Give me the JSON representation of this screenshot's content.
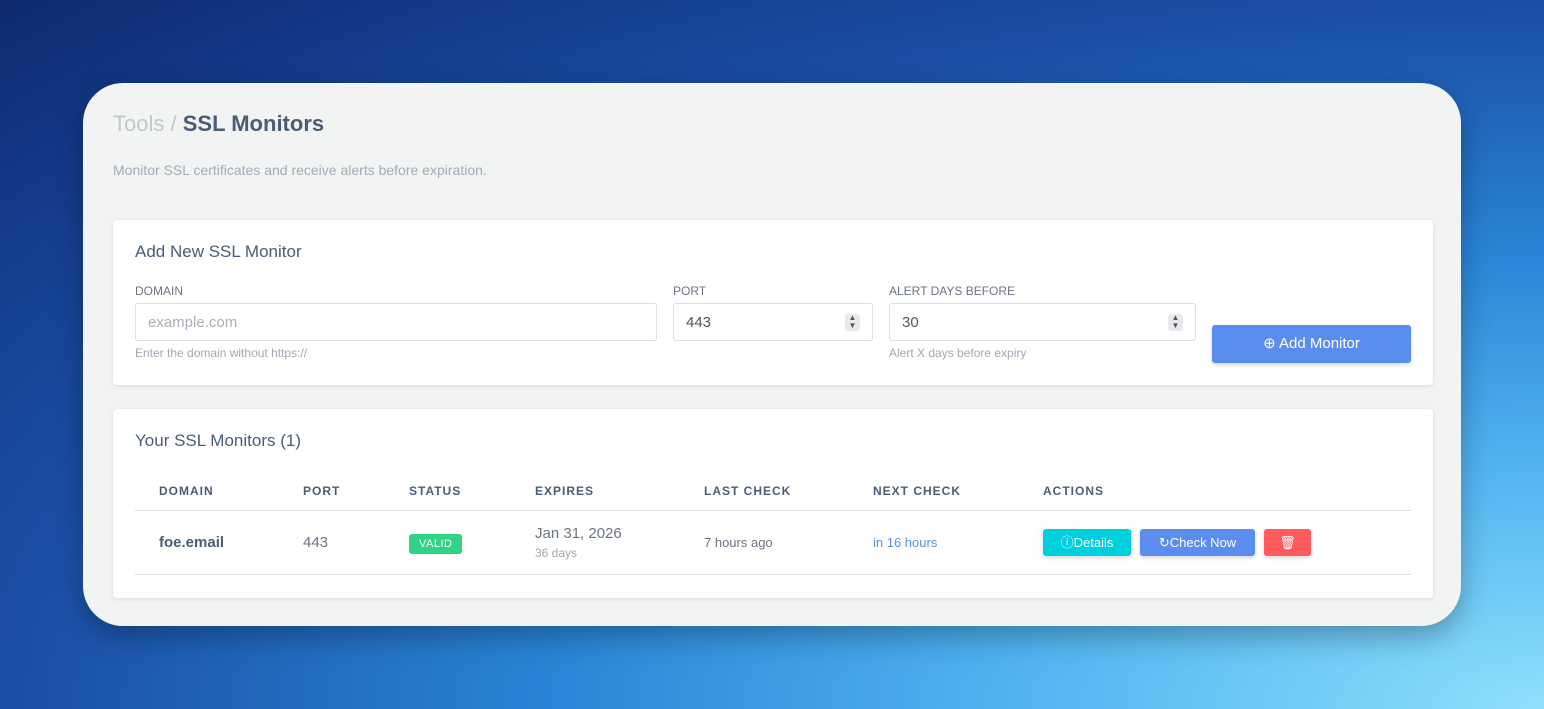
{
  "breadcrumb": {
    "parent": "Tools",
    "separator": "/",
    "current": "SSL Monitors"
  },
  "subtitle": "Monitor SSL certificates and receive alerts before expiration.",
  "add_form": {
    "title": "Add New SSL Monitor",
    "domain": {
      "label": "DOMAIN",
      "placeholder": "example.com",
      "help": "Enter the domain without https://"
    },
    "port": {
      "label": "PORT",
      "value": "443"
    },
    "alert_days": {
      "label": "ALERT DAYS BEFORE",
      "value": "30",
      "help": "Alert X days before expiry"
    },
    "submit_label": "Add Monitor",
    "accent": "#5b8def"
  },
  "monitors": {
    "title": "Your SSL Monitors (1)",
    "columns": [
      "DOMAIN",
      "PORT",
      "STATUS",
      "EXPIRES",
      "LAST CHECK",
      "NEXT CHECK",
      "ACTIONS"
    ],
    "rows": [
      {
        "domain": "foe.email",
        "port": "443",
        "status": "VALID",
        "expires": "Jan 31, 2026",
        "expires_in": "36 days",
        "last_check": "7 hours ago",
        "next_check": "in 16 hours",
        "details_label": "Details",
        "check_label": "Check Now"
      }
    ]
  }
}
